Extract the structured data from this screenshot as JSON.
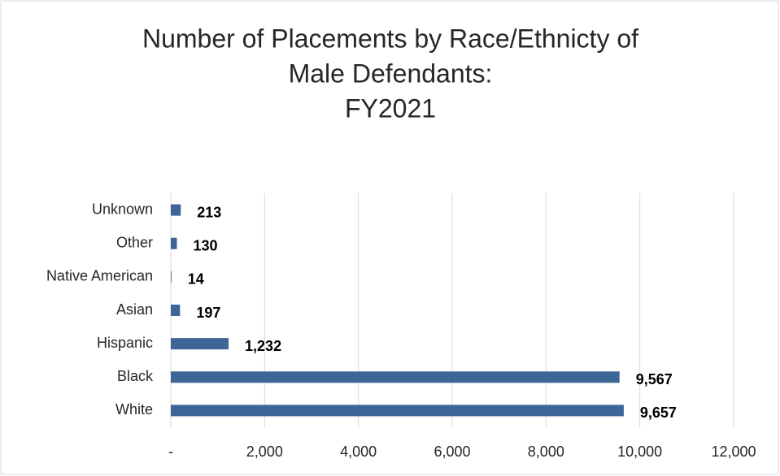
{
  "chart_data": {
    "type": "bar",
    "orientation": "horizontal",
    "title": [
      "Number of Placements by Race/Ethnicty of",
      "Male Defendants:",
      "FY2021"
    ],
    "categories": [
      "Unknown",
      "Other",
      "Native American",
      "Asian",
      "Hispanic",
      "Black",
      "White"
    ],
    "values": [
      213,
      130,
      14,
      197,
      1232,
      9567,
      9657
    ],
    "value_labels": [
      "213",
      "130",
      "14",
      "197",
      "1,232",
      "9,567",
      "9,657"
    ],
    "color": "#3d6596",
    "xlim": [
      0,
      12000
    ],
    "xticks": [
      {
        "value": 0,
        "label": "-"
      },
      {
        "value": 2000,
        "label": "2,000"
      },
      {
        "value": 4000,
        "label": "4,000"
      },
      {
        "value": 6000,
        "label": "6,000"
      },
      {
        "value": 8000,
        "label": "8,000"
      },
      {
        "value": 10000,
        "label": "10,000"
      },
      {
        "value": 12000,
        "label": "12,000"
      }
    ],
    "grid": true
  }
}
